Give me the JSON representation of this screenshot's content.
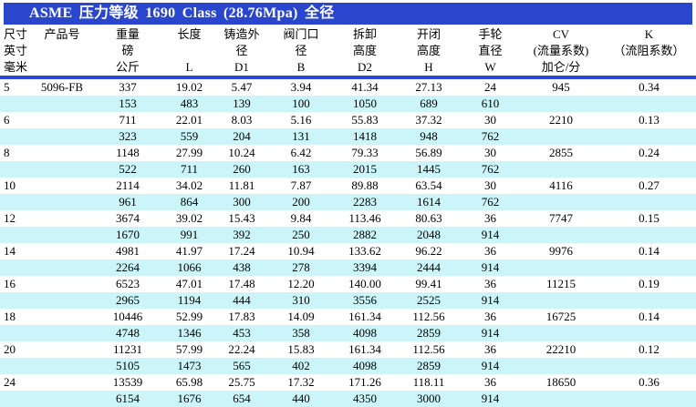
{
  "title_bar": {
    "title": "ASME 压力等级 1690 Class (28.76Mpa) 全径"
  },
  "colors": {
    "title_bar_bg": "#2946cd",
    "header_rule_blue": "#2946d8",
    "stripe_cyan": "#ccf5fa",
    "title_text": "#ffffff",
    "body_text": "#000000"
  },
  "table": {
    "columns": [
      {
        "id": "size",
        "lines": [
          "尺寸",
          "英寸",
          "毫米"
        ]
      },
      {
        "id": "product-no",
        "lines": [
          "产品号",
          "",
          ""
        ]
      },
      {
        "id": "weight",
        "lines": [
          "重量",
          "磅",
          "公斤"
        ]
      },
      {
        "id": "length",
        "lines": [
          "长度",
          "",
          "L"
        ]
      },
      {
        "id": "cast-outer-dia",
        "lines": [
          "铸造外",
          "径",
          "D1"
        ]
      },
      {
        "id": "valve-bore",
        "lines": [
          "阀门口",
          "径",
          "B"
        ]
      },
      {
        "id": "removal-height",
        "lines": [
          "拆卸",
          "高度",
          "D2"
        ]
      },
      {
        "id": "open-close-height",
        "lines": [
          "开闭",
          "高度",
          "H"
        ]
      },
      {
        "id": "handwheel-dia",
        "lines": [
          "手轮",
          "直径",
          "W"
        ]
      },
      {
        "id": "cv",
        "lines": [
          "CV",
          "(流量系数)",
          "加仑/分"
        ]
      },
      {
        "id": "k",
        "lines": [
          "K",
          "（流阻系数）",
          ""
        ]
      }
    ],
    "rows": [
      [
        "5",
        "5096-FB",
        "337",
        "19.02",
        "5.47",
        "3.94",
        "41.34",
        "27.13",
        "24",
        "945",
        "0.34"
      ],
      [
        "",
        "",
        "153",
        "483",
        "139",
        "100",
        "1050",
        "689",
        "610",
        "",
        ""
      ],
      [
        "6",
        "",
        "711",
        "22.01",
        "8.03",
        "5.16",
        "55.83",
        "37.32",
        "30",
        "2210",
        "0.13"
      ],
      [
        "",
        "",
        "323",
        "559",
        "204",
        "131",
        "1418",
        "948",
        "762",
        "",
        ""
      ],
      [
        "8",
        "",
        "1148",
        "27.99",
        "10.24",
        "6.42",
        "79.33",
        "56.89",
        "30",
        "2855",
        "0.24"
      ],
      [
        "",
        "",
        "522",
        "711",
        "260",
        "163",
        "2015",
        "1445",
        "762",
        "",
        ""
      ],
      [
        "10",
        "",
        "2114",
        "34.02",
        "11.81",
        "7.87",
        "89.88",
        "63.54",
        "30",
        "4116",
        "0.27"
      ],
      [
        "",
        "",
        "961",
        "864",
        "300",
        "200",
        "2283",
        "1614",
        "762",
        "",
        ""
      ],
      [
        "12",
        "",
        "3674",
        "39.02",
        "15.43",
        "9.84",
        "113.46",
        "80.63",
        "36",
        "7747",
        "0.15"
      ],
      [
        "",
        "",
        "1670",
        "991",
        "392",
        "250",
        "2882",
        "2048",
        "914",
        "",
        ""
      ],
      [
        "14",
        "",
        "4981",
        "41.97",
        "17.24",
        "10.94",
        "133.62",
        "96.22",
        "36",
        "9976",
        "0.14"
      ],
      [
        "",
        "",
        "2264",
        "1066",
        "438",
        "278",
        "3394",
        "2444",
        "914",
        "",
        ""
      ],
      [
        "16",
        "",
        "6523",
        "47.01",
        "17.48",
        "12.20",
        "140.00",
        "99.41",
        "36",
        "11215",
        "0.19"
      ],
      [
        "",
        "",
        "2965",
        "1194",
        "444",
        "310",
        "3556",
        "2525",
        "914",
        "",
        ""
      ],
      [
        "18",
        "",
        "10446",
        "52.99",
        "17.83",
        "14.09",
        "161.34",
        "112.56",
        "36",
        "16725",
        "0.14"
      ],
      [
        "",
        "",
        "4748",
        "1346",
        "453",
        "358",
        "4098",
        "2859",
        "914",
        "",
        ""
      ],
      [
        "20",
        "",
        "11231",
        "57.99",
        "22.24",
        "15.83",
        "161.34",
        "112.56",
        "36",
        "22210",
        "0.12"
      ],
      [
        "",
        "",
        "5105",
        "1473",
        "565",
        "402",
        "4098",
        "2859",
        "914",
        "",
        ""
      ],
      [
        "24",
        "",
        "13539",
        "65.98",
        "25.75",
        "17.32",
        "171.26",
        "118.11",
        "36",
        "18650",
        "0.36"
      ],
      [
        "",
        "",
        "6154",
        "1676",
        "654",
        "440",
        "4350",
        "3000",
        "914",
        "",
        ""
      ]
    ]
  }
}
